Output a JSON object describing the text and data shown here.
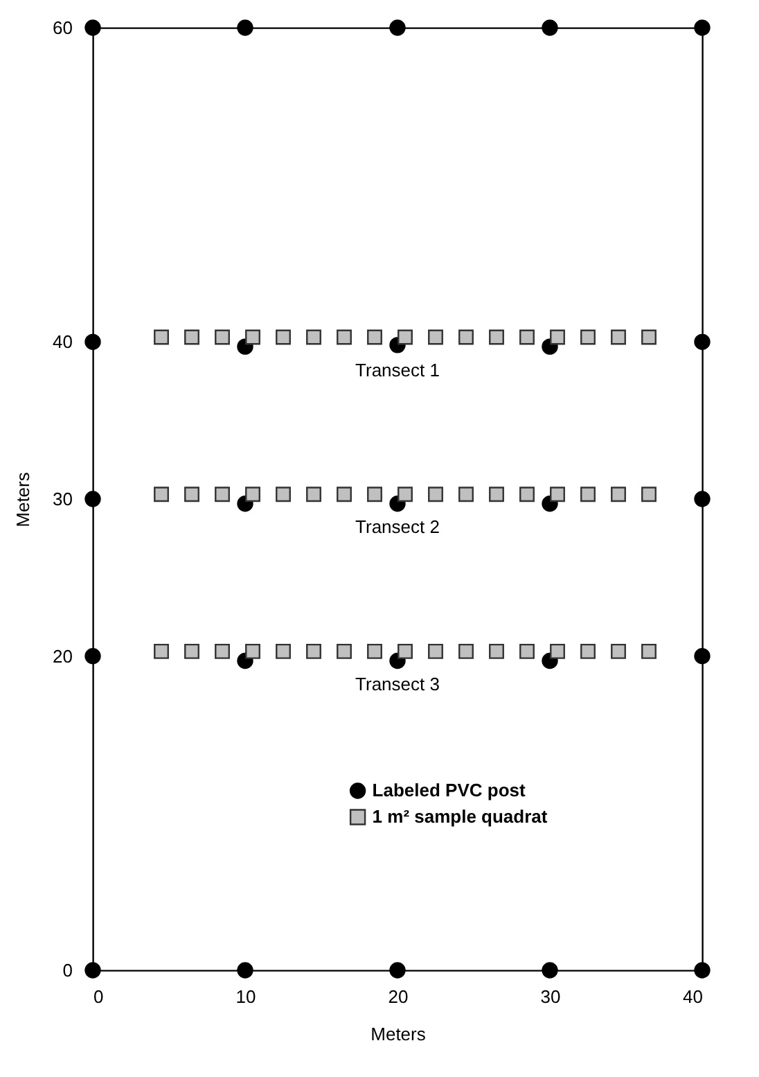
{
  "chart_data": {
    "type": "scatter",
    "xlabel": "Meters",
    "ylabel": "Meters",
    "xlim": [
      0,
      40
    ],
    "ylim": [
      0,
      60
    ],
    "xticks": [
      0,
      10,
      20,
      30,
      40
    ],
    "yticks": [
      0,
      20,
      30,
      40,
      60
    ],
    "grid": false,
    "legend": "bottom",
    "series": [
      {
        "name": "1 m² sample quadrat",
        "color": "#c0c0c0",
        "marker": "square",
        "x": [
          4.5,
          6.5,
          8.5,
          10.5,
          12.5,
          14.5,
          16.5,
          18.5,
          20.5,
          22.5,
          24.5,
          26.5,
          28.5,
          30.5,
          32.5,
          34.5,
          36.5,
          4.5,
          6.5,
          8.5,
          10.5,
          12.5,
          14.5,
          16.5,
          18.5,
          20.5,
          22.5,
          24.5,
          26.5,
          28.5,
          30.5,
          32.5,
          34.5,
          36.5,
          4.5,
          6.5,
          8.5,
          10.5,
          12.5,
          14.5,
          16.5,
          18.5,
          20.5,
          22.5,
          24.5,
          26.5,
          28.5,
          30.5,
          32.5,
          34.5,
          36.5
        ],
        "values": [
          40.3,
          40.3,
          40.3,
          40.3,
          40.3,
          40.3,
          40.3,
          40.3,
          40.3,
          40.3,
          40.3,
          40.3,
          40.3,
          40.3,
          40.3,
          40.3,
          40.3,
          30.3,
          30.3,
          30.3,
          30.3,
          30.3,
          30.3,
          30.3,
          30.3,
          30.3,
          30.3,
          30.3,
          30.3,
          30.3,
          30.3,
          30.3,
          30.3,
          30.3,
          20.3,
          20.3,
          20.3,
          20.3,
          20.3,
          20.3,
          20.3,
          20.3,
          20.3,
          20.3,
          20.3,
          20.3,
          20.3,
          20.3,
          20.3,
          20.3,
          20.3
        ]
      },
      {
        "name": "Labeled PVC post",
        "color": "#000000",
        "marker": "circle",
        "x": [
          0,
          10,
          20,
          30,
          40,
          0,
          10,
          20,
          30,
          40,
          0,
          0,
          0,
          40,
          40,
          40,
          10,
          20,
          30,
          10,
          20,
          30,
          10,
          20,
          30
        ],
        "values": [
          0,
          0,
          0,
          0,
          0,
          60,
          60,
          60,
          60,
          60,
          20,
          30,
          40,
          20,
          30,
          40,
          39.7,
          39.8,
          39.7,
          29.7,
          29.7,
          29.7,
          19.7,
          19.7,
          19.7
        ]
      }
    ],
    "annotations": [
      "Transect 1",
      "Transect 2",
      "Transect 3"
    ]
  }
}
